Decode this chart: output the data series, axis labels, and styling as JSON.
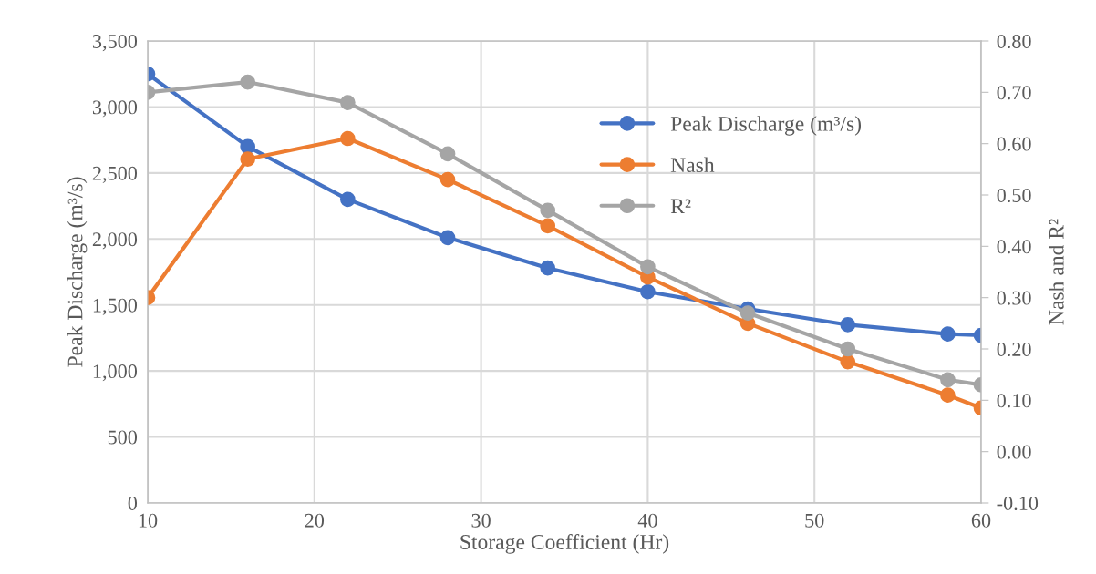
{
  "chart_data": {
    "type": "line",
    "xlabel": "Storage Coefficient (Hr)",
    "ylabel": "Peak Discharge (m³/s)",
    "y2label": "Nash and R²",
    "x": [
      10,
      16,
      22,
      28,
      34,
      40,
      46,
      52,
      58,
      60
    ],
    "series": [
      {
        "name": "Peak Discharge (m³/s)",
        "color": "#4472c4",
        "values": [
          3250,
          2700,
          2300,
          2010,
          1780,
          1600,
          1470,
          1350,
          1280,
          1270
        ]
      },
      {
        "name": "Nash",
        "color": "#ed7d31",
        "axis": "y2",
        "values": [
          0.3,
          0.57,
          0.61,
          0.53,
          0.44,
          0.34,
          0.25,
          0.175,
          0.11,
          0.085
        ]
      },
      {
        "name": "R²",
        "color": "#a5a5a5",
        "axis": "y2",
        "values": [
          0.7,
          0.72,
          0.68,
          0.58,
          0.47,
          0.36,
          0.27,
          0.2,
          0.14,
          0.13
        ]
      }
    ],
    "xlim": [
      10,
      60
    ],
    "xticks": [
      10,
      20,
      30,
      40,
      50,
      60
    ],
    "ylim": [
      0,
      3500
    ],
    "yticks": [
      {
        "value": 0,
        "label": "0"
      },
      {
        "value": 500,
        "label": "500"
      },
      {
        "value": 1000,
        "label": "1,000"
      },
      {
        "value": 1500,
        "label": "1,500"
      },
      {
        "value": 2000,
        "label": "2,000"
      },
      {
        "value": 2500,
        "label": "2,500"
      },
      {
        "value": 3000,
        "label": "3,000"
      },
      {
        "value": 3500,
        "label": "3,500"
      }
    ],
    "y2lim": [
      -0.1,
      0.8
    ],
    "y2ticks": [
      {
        "value": -0.1,
        "label": "-0.10"
      },
      {
        "value": 0,
        "label": "0.00"
      },
      {
        "value": 0.1,
        "label": "0.10"
      },
      {
        "value": 0.2,
        "label": "0.20"
      },
      {
        "value": 0.3,
        "label": "0.30"
      },
      {
        "value": 0.4,
        "label": "0.40"
      },
      {
        "value": 0.5,
        "label": "0.50"
      },
      {
        "value": 0.6,
        "label": "0.60"
      },
      {
        "value": 0.7,
        "label": "0.70"
      },
      {
        "value": 0.8,
        "label": "0.80"
      }
    ],
    "grid": true,
    "legend": "top right",
    "marker": "circle",
    "line_style": "solid"
  }
}
